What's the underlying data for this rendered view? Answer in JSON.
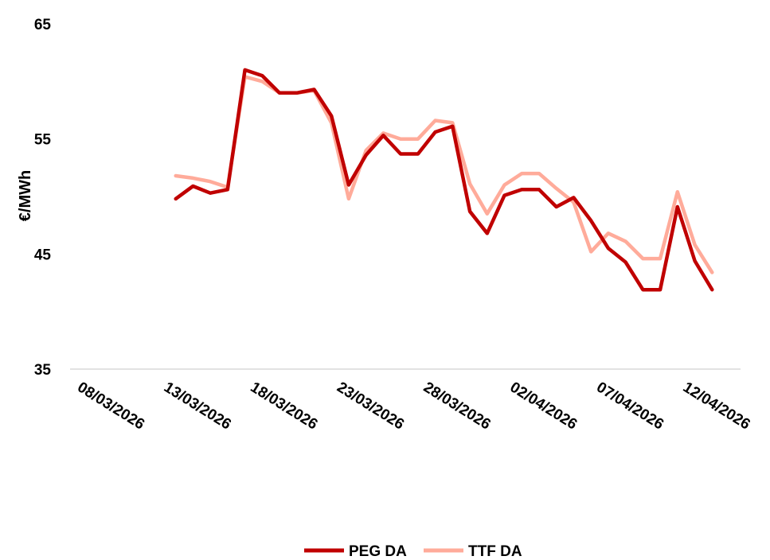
{
  "chart_data": {
    "type": "line",
    "ylabel": "€/MWh",
    "xlabel": "",
    "title": "",
    "ylim": [
      35,
      65
    ],
    "yticks": [
      35,
      45,
      55,
      65
    ],
    "x_ticks": [
      "08/03/2026",
      "13/03/2026",
      "18/03/2026",
      "23/03/2026",
      "28/03/2026",
      "02/04/2026",
      "07/04/2026",
      "12/04/2026"
    ],
    "x_first_date": "08/03/2026",
    "x_last_date": "13/04/2026",
    "x_data_start": "13/03/2026",
    "grid": false,
    "legend_position": "bottom",
    "series": [
      {
        "name": "PEG DA",
        "color": "#c00000",
        "values": [
          49.8,
          50.9,
          50.3,
          50.6,
          61.0,
          60.5,
          59.0,
          59.0,
          59.3,
          57.0,
          51.0,
          53.6,
          55.3,
          53.7,
          53.7,
          55.6,
          56.1,
          48.7,
          46.8,
          50.1,
          50.6,
          50.6,
          49.1,
          49.9,
          47.9,
          45.5,
          44.3,
          41.9,
          41.9,
          49.1,
          44.4,
          41.9
        ]
      },
      {
        "name": "TTF DA",
        "color": "#ffab9a",
        "values": [
          51.8,
          51.6,
          51.3,
          50.8,
          60.4,
          60.0,
          59.0,
          59.0,
          59.2,
          56.4,
          49.8,
          54.0,
          55.5,
          55.0,
          55.0,
          56.6,
          56.4,
          51.1,
          48.5,
          51.0,
          52.0,
          52.0,
          50.7,
          49.5,
          45.2,
          46.8,
          46.1,
          44.6,
          44.6,
          50.4,
          45.8,
          43.4
        ]
      }
    ]
  }
}
